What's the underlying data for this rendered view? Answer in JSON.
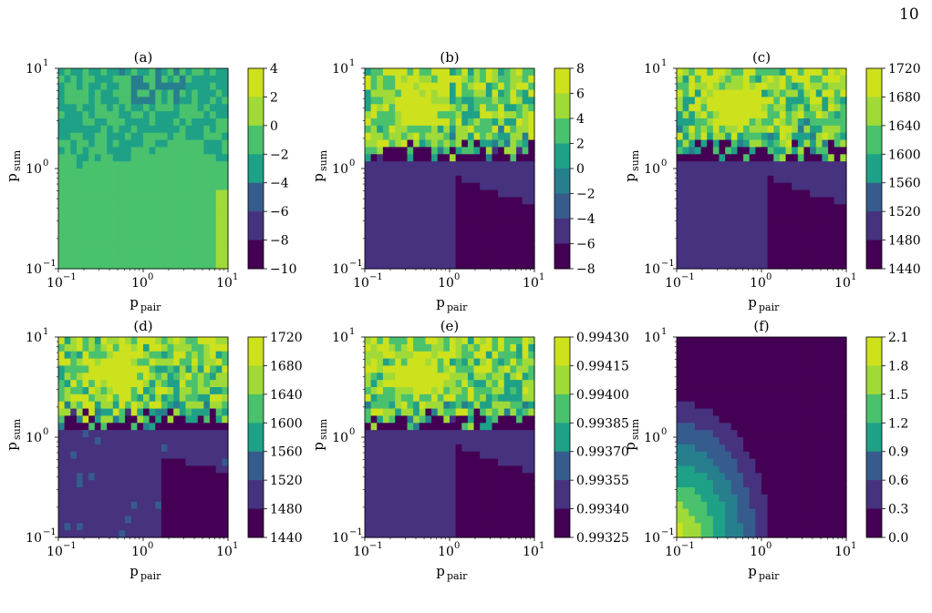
{
  "page": {
    "number": "10"
  },
  "palette": [
    "#440154",
    "#46327e",
    "#365c8d",
    "#277f8e",
    "#1fa187",
    "#4ac16d",
    "#a0da39",
    "#cde11d"
  ],
  "panel_common": {
    "xlabel_base": "p",
    "xlabel_sub": "pair",
    "ylabel_base": "p",
    "ylabel_sub": "sum",
    "axis_ticks": [
      "10",
      "10",
      "10"
    ],
    "axis_tick_exponents": [
      "−1",
      "0",
      "1"
    ]
  },
  "chart_data": [
    {
      "type": "heatmap",
      "title": "(a)",
      "xlim": [
        0.1,
        10
      ],
      "ylim": [
        0.1,
        10
      ],
      "xscale": "log",
      "yscale": "log",
      "colorbar_ticks": [
        "4",
        "2",
        "0",
        "−2",
        "−4",
        "−6",
        "−8",
        "−10"
      ],
      "colorbar_range": [
        -10,
        4
      ]
    },
    {
      "type": "heatmap",
      "title": "(b)",
      "xlim": [
        0.1,
        10
      ],
      "ylim": [
        0.1,
        10
      ],
      "xscale": "log",
      "yscale": "log",
      "colorbar_ticks": [
        "8",
        "6",
        "4",
        "2",
        "0",
        "−2",
        "−4",
        "−6",
        "−8"
      ],
      "colorbar_range": [
        -8,
        8
      ]
    },
    {
      "type": "heatmap",
      "title": "(c)",
      "xlim": [
        0.1,
        10
      ],
      "ylim": [
        0.1,
        10
      ],
      "xscale": "log",
      "yscale": "log",
      "colorbar_ticks": [
        "1720",
        "1680",
        "1640",
        "1600",
        "1560",
        "1520",
        "1480",
        "1440"
      ],
      "colorbar_range": [
        1440,
        1720
      ]
    },
    {
      "type": "heatmap",
      "title": "(d)",
      "xlim": [
        0.1,
        10
      ],
      "ylim": [
        0.1,
        10
      ],
      "xscale": "log",
      "yscale": "log",
      "colorbar_ticks": [
        "1720",
        "1680",
        "1640",
        "1600",
        "1560",
        "1520",
        "1480",
        "1440"
      ],
      "colorbar_range": [
        1440,
        1720
      ]
    },
    {
      "type": "heatmap",
      "title": "(e)",
      "xlim": [
        0.1,
        10
      ],
      "ylim": [
        0.1,
        10
      ],
      "xscale": "log",
      "yscale": "log",
      "colorbar_ticks": [
        "0.99430",
        "0.99415",
        "0.99400",
        "0.99385",
        "0.99370",
        "0.99355",
        "0.99340",
        "0.99325"
      ],
      "colorbar_range": [
        0.99325,
        0.9943
      ]
    },
    {
      "type": "heatmap",
      "title": "(f)",
      "xlim": [
        0.1,
        10
      ],
      "ylim": [
        0.1,
        10
      ],
      "xscale": "log",
      "yscale": "log",
      "colorbar_ticks": [
        "2.1",
        "1.8",
        "1.5",
        "1.2",
        "0.9",
        "0.6",
        "0.3",
        "0.0"
      ],
      "colorbar_range": [
        0.0,
        2.1
      ]
    }
  ]
}
